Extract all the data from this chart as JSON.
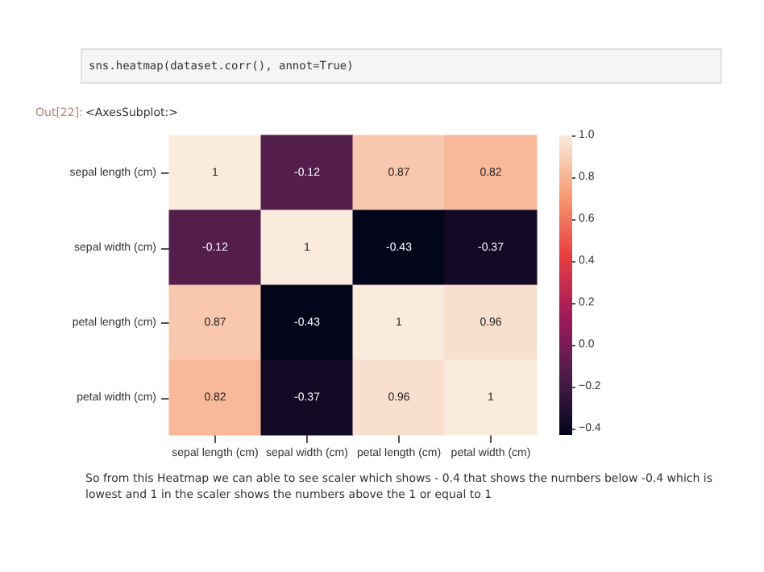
{
  "chart_data": {
    "type": "heatmap",
    "categories": [
      "sepal length (cm)",
      "sepal width (cm)",
      "petal length (cm)",
      "petal width (cm)"
    ],
    "y_categories": [
      "sepal length (cm)",
      "sepal width (cm)",
      "petal length (cm)",
      "petal width (cm)"
    ],
    "cells": [
      [
        1,
        -0.12,
        0.87,
        0.82
      ],
      [
        -0.12,
        1,
        -0.43,
        -0.37
      ],
      [
        0.87,
        -0.43,
        1,
        0.96
      ],
      [
        0.82,
        -0.37,
        0.96,
        1
      ]
    ],
    "clim": [
      -0.43,
      1.0
    ],
    "data_labels": true,
    "cticks": [
      {
        "value": -0.4,
        "label": "−0.4"
      },
      {
        "value": -0.2,
        "label": "−0.2"
      },
      {
        "value": 0,
        "label": "0.0"
      },
      {
        "value": 0.2,
        "label": "0.2"
      },
      {
        "value": 0.4,
        "label": "0.4"
      },
      {
        "value": 0.6,
        "label": "0.6"
      },
      {
        "value": 0.8,
        "label": "0.8"
      },
      {
        "value": 1.0,
        "label": "1.0"
      }
    ],
    "annotations": [
      "sns.heatmap(dataset.corr(), annot=True)",
      "Out[22]:",
      "<AxesSubplot:>",
      "So from this Heatmap we can able to see scaler which shows - 0.4 that shows the numbers below -0.4 which is lowest and 1 in the scaler shows the numbers above the 1 or equal to 1"
    ]
  }
}
